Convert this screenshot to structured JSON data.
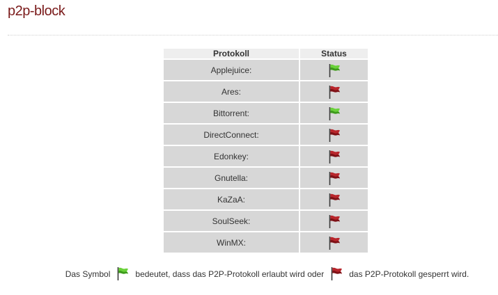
{
  "page": {
    "title": "p2p-block"
  },
  "table": {
    "headers": {
      "protocol": "Protokoll",
      "status": "Status"
    },
    "rows": [
      {
        "label": "Applejuice:",
        "status": "allowed"
      },
      {
        "label": "Ares:",
        "status": "blocked"
      },
      {
        "label": "Bittorrent:",
        "status": "allowed"
      },
      {
        "label": "DirectConnect:",
        "status": "blocked"
      },
      {
        "label": "Edonkey:",
        "status": "blocked"
      },
      {
        "label": "Gnutella:",
        "status": "blocked"
      },
      {
        "label": "KaZaA:",
        "status": "blocked"
      },
      {
        "label": "SoulSeek:",
        "status": "blocked"
      },
      {
        "label": "WinMX:",
        "status": "blocked"
      }
    ]
  },
  "legend": {
    "text_before": "Das Symbol",
    "text_allowed": "bedeutet, dass das P2P-Protokoll erlaubt wird oder",
    "text_blocked": "das P2P-Protokoll gesperrt wird."
  },
  "icons": {
    "allowed": "green-flag-icon",
    "blocked": "red-flag-icon"
  },
  "colors": {
    "title": "#7a1a1a",
    "allowed": "#4fbf2a",
    "blocked": "#a8242a"
  }
}
